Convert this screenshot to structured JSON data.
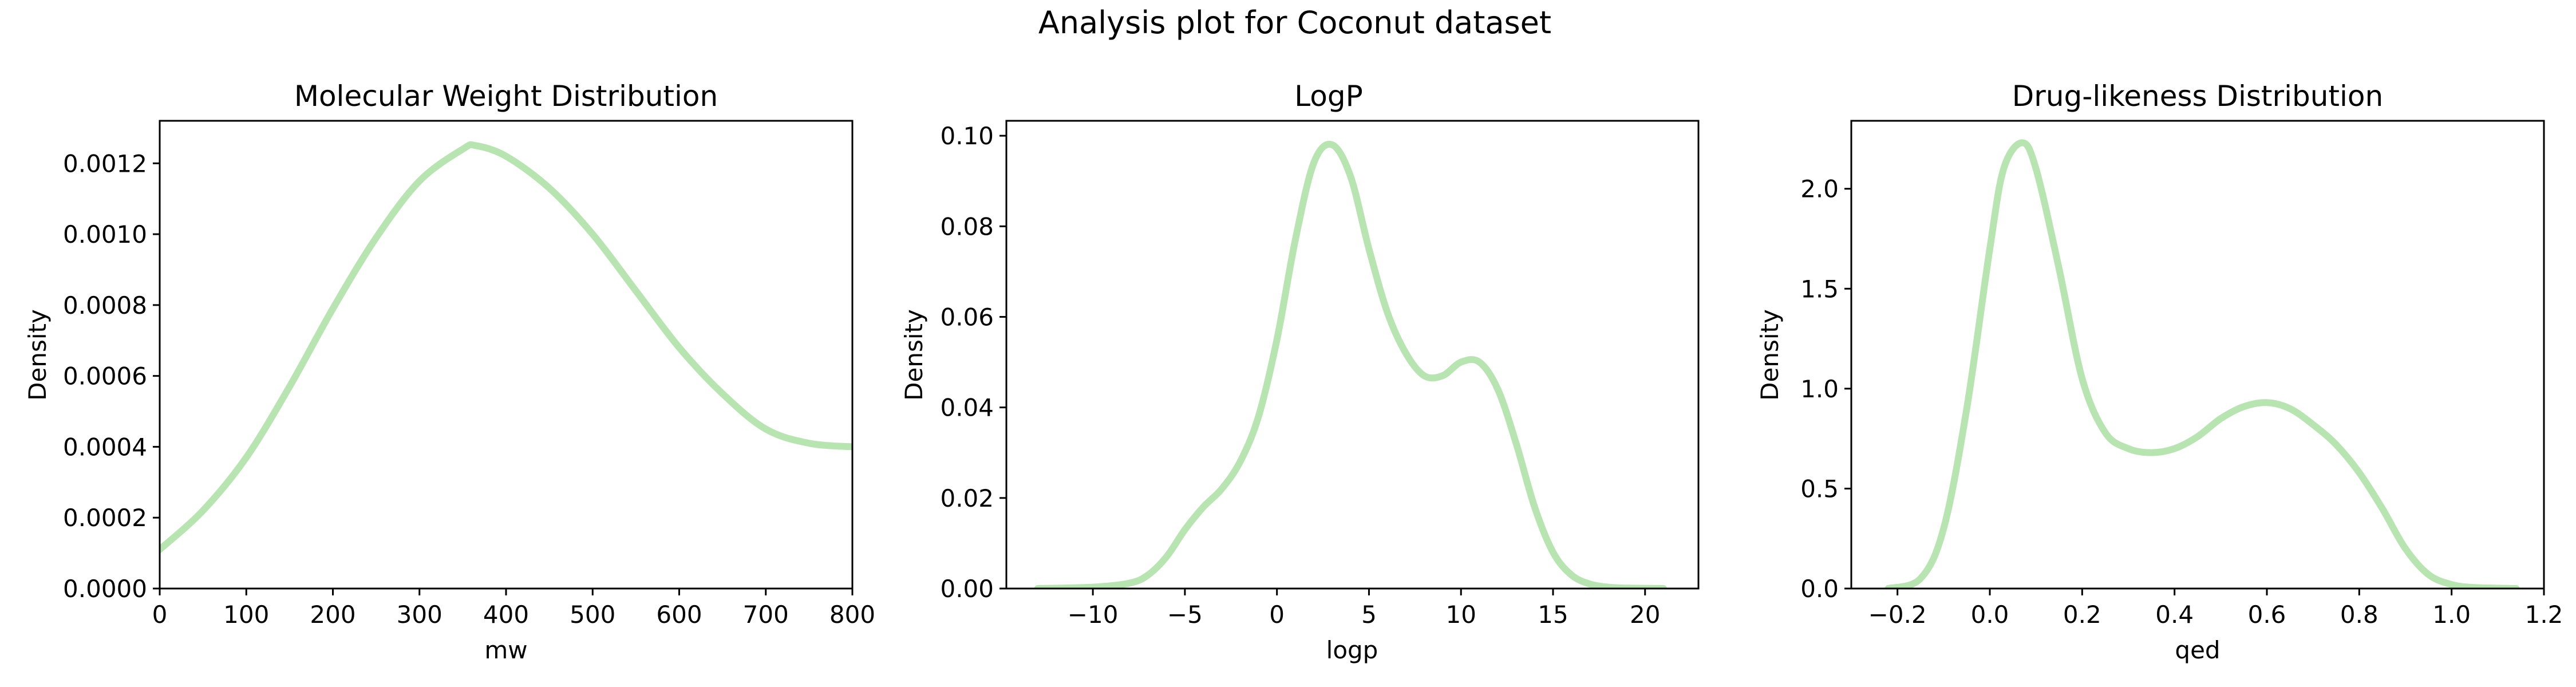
{
  "figure": {
    "suptitle": "Analysis plot for Coconut dataset",
    "line_color": "#b8e4b1"
  },
  "chart_data": [
    {
      "type": "line",
      "title": "Molecular Weight Distribution",
      "xlabel": "mw",
      "ylabel": "Density",
      "xlim": [
        0,
        800
      ],
      "ylim": [
        0,
        0.00132
      ],
      "xticks": [
        0,
        100,
        200,
        300,
        400,
        500,
        600,
        700,
        800
      ],
      "xtick_labels": [
        "0",
        "100",
        "200",
        "300",
        "400",
        "500",
        "600",
        "700",
        "800"
      ],
      "yticks": [
        0,
        0.0002,
        0.0004,
        0.0006,
        0.0008,
        0.001,
        0.0012
      ],
      "ytick_labels": [
        "0.0000",
        "0.0002",
        "0.0004",
        "0.0006",
        "0.0008",
        "0.0010",
        "0.0012"
      ],
      "series": [
        {
          "x": [
            0,
            50,
            100,
            150,
            200,
            250,
            300,
            350,
            365,
            400,
            450,
            500,
            550,
            600,
            650,
            700,
            750,
            800
          ],
          "y": [
            0.00011,
            0.00022,
            0.00037,
            0.00057,
            0.00079,
            0.00099,
            0.00115,
            0.00124,
            0.00125,
            0.00122,
            0.00113,
            0.001,
            0.00084,
            0.00068,
            0.00055,
            0.00045,
            0.00041,
            0.0004
          ]
        }
      ]
    },
    {
      "type": "line",
      "title": "LogP",
      "xlabel": "logp",
      "ylabel": "Density",
      "xlim": [
        -14.7,
        22.9
      ],
      "ylim": [
        0,
        0.1033
      ],
      "xticks": [
        -10,
        -5,
        0,
        5,
        10,
        15,
        20
      ],
      "xtick_labels": [
        "−10",
        "−5",
        "0",
        "5",
        "10",
        "15",
        "20"
      ],
      "yticks": [
        0,
        0.02,
        0.04,
        0.06,
        0.08,
        0.1
      ],
      "ytick_labels": [
        "0.00",
        "0.02",
        "0.04",
        "0.06",
        "0.08",
        "0.10"
      ],
      "series": [
        {
          "x": [
            -13,
            -10,
            -8,
            -7,
            -6,
            -5,
            -4,
            -3,
            -2,
            -1,
            0,
            1,
            2,
            3,
            4,
            5,
            6,
            7,
            8,
            9,
            10,
            11,
            12,
            13,
            14,
            15,
            16,
            17,
            18,
            19,
            21
          ],
          "y": [
            0,
            0.0003,
            0.0012,
            0.003,
            0.007,
            0.013,
            0.018,
            0.022,
            0.028,
            0.038,
            0.055,
            0.077,
            0.094,
            0.098,
            0.091,
            0.075,
            0.061,
            0.052,
            0.047,
            0.047,
            0.05,
            0.05,
            0.044,
            0.032,
            0.018,
            0.008,
            0.003,
            0.001,
            0.0003,
            0.0001,
            0
          ]
        }
      ]
    },
    {
      "type": "line",
      "title": "Drug-likeness Distribution",
      "xlabel": "qed",
      "ylabel": "Density",
      "xlim": [
        -0.3,
        1.2
      ],
      "ylim": [
        0,
        2.34
      ],
      "xticks": [
        -0.2,
        0,
        0.2,
        0.4,
        0.6,
        0.8,
        1.0,
        1.2
      ],
      "xtick_labels": [
        "−0.2",
        "0.0",
        "0.2",
        "0.4",
        "0.6",
        "0.8",
        "1.0",
        "1.2"
      ],
      "yticks": [
        0,
        0.5,
        1.0,
        1.5,
        2.0
      ],
      "ytick_labels": [
        "0.0",
        "0.5",
        "1.0",
        "1.5",
        "2.0"
      ],
      "series": [
        {
          "x": [
            -0.22,
            -0.15,
            -0.1,
            -0.05,
            0.0,
            0.03,
            0.07,
            0.1,
            0.15,
            0.2,
            0.25,
            0.3,
            0.35,
            0.4,
            0.45,
            0.5,
            0.55,
            0.6,
            0.65,
            0.7,
            0.75,
            0.8,
            0.85,
            0.9,
            0.95,
            1.0,
            1.05,
            1.14
          ],
          "y": [
            0,
            0.05,
            0.3,
            0.9,
            1.7,
            2.1,
            2.23,
            2.1,
            1.6,
            1.05,
            0.78,
            0.7,
            0.68,
            0.7,
            0.76,
            0.85,
            0.91,
            0.93,
            0.9,
            0.82,
            0.72,
            0.58,
            0.4,
            0.2,
            0.07,
            0.02,
            0.005,
            0
          ]
        }
      ]
    }
  ]
}
